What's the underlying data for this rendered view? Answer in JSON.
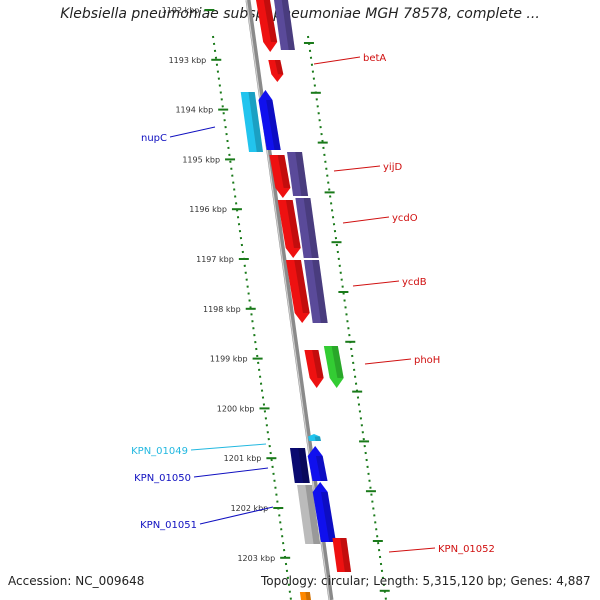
{
  "title": "Klebsiella pneumoniae subsp. pneumoniae MGH 78578, complete ...",
  "footer": {
    "accession": "Accession: NC_009648",
    "summary": "Topology: circular; Length: 5,315,120 bp; Genes: 4,887"
  },
  "kbp_ticks": [
    "1192 kbp",
    "1193 kbp",
    "1194 kbp",
    "1195 kbp",
    "1196 kbp",
    "1197 kbp",
    "1198 kbp",
    "1199 kbp",
    "1200 kbp",
    "1201 kbp",
    "1202 kbp",
    "1203 kbp"
  ],
  "gene_labels": [
    {
      "name": "betA",
      "color": "#d01010"
    },
    {
      "name": "nupC",
      "color": "#1010c0"
    },
    {
      "name": "yijD",
      "color": "#d01010"
    },
    {
      "name": "ycdO",
      "color": "#d01010"
    },
    {
      "name": "ycdB",
      "color": "#d01010"
    },
    {
      "name": "phoH",
      "color": "#d01010"
    },
    {
      "name": "KPN_01049",
      "color": "#22b8e0"
    },
    {
      "name": "KPN_01050",
      "color": "#1010c0"
    },
    {
      "name": "KPN_01051",
      "color": "#1010c0"
    },
    {
      "name": "KPN_01052",
      "color": "#d01010"
    }
  ],
  "colors": {
    "backbone": "#8a8a8a",
    "dots": "#1a7a1a",
    "red": "#ee1111",
    "blue": "#1010ee",
    "navy": "#0a0a70",
    "purple": "#5a4a9a",
    "cyan": "#22c4ee",
    "green": "#33cc33",
    "grey": "#bbbbbb"
  }
}
